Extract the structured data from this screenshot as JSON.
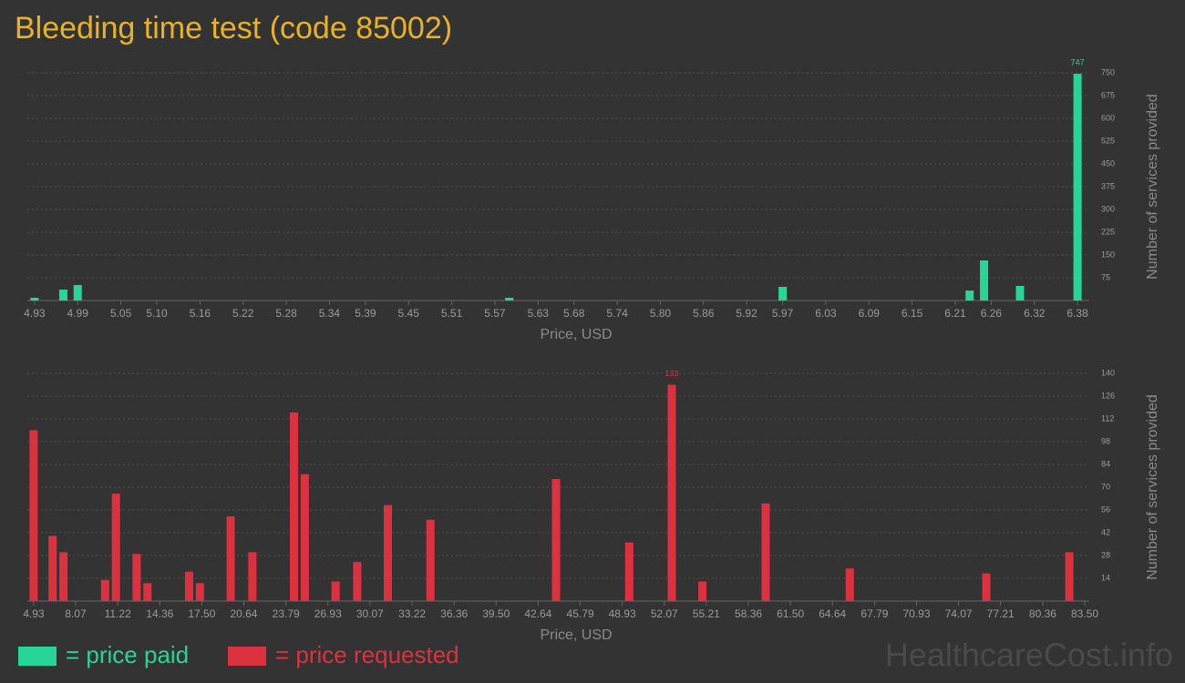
{
  "title": "Bleeding time test (code 85002)",
  "watermark": "HealthcareCost.info",
  "chart_data": [
    {
      "type": "bar",
      "x_label": "Price, USD",
      "y_label": "Number of services provided",
      "x": [
        4.93,
        4.97,
        4.99,
        5.59,
        5.97,
        6.23,
        6.25,
        6.3,
        6.38
      ],
      "series": [
        {
          "name": "= price paid",
          "color": "#27d597",
          "values": [
            9,
            36,
            51,
            9,
            45,
            33,
            132,
            48,
            747
          ]
        }
      ],
      "xlim": [
        4.92,
        6.39
      ],
      "xticks": [
        4.93,
        4.99,
        5.05,
        {
          "value": 5.1,
          "label": "5.10"
        },
        5.16,
        5.22,
        5.28,
        5.34,
        5.39,
        5.45,
        5.51,
        5.57,
        5.63,
        5.68,
        5.74,
        {
          "value": 5.8,
          "label": "5.80"
        },
        5.86,
        5.92,
        5.97,
        6.03,
        6.09,
        6.15,
        6.21,
        6.26,
        6.32,
        6.38
      ],
      "ylim": [
        0,
        750
      ],
      "yticks": [
        75,
        150,
        225,
        300,
        375,
        450,
        525,
        600,
        675,
        750
      ],
      "grid": true
    },
    {
      "type": "bar",
      "x_label": "Price, USD",
      "y_label": "Number of services provided",
      "x": [
        4.93,
        6.35,
        7.16,
        10.27,
        11.08,
        12.63,
        13.44,
        16.55,
        17.36,
        19.66,
        21.28,
        24.39,
        25.2,
        27.5,
        29.12,
        31.41,
        34.59,
        43.98,
        49.45,
        52.63,
        54.92,
        59.65,
        65.94,
        76.14,
        82.35
      ],
      "series": [
        {
          "name": "= price requested",
          "color": "#dc3240",
          "values": [
            105,
            40,
            30,
            13,
            66,
            29,
            11,
            18,
            11,
            52,
            30,
            116,
            78,
            12,
            24,
            59,
            50,
            75,
            36,
            133,
            12,
            60,
            20,
            17,
            30
          ]
        }
      ],
      "xlim": [
        4.46,
        83.5
      ],
      "xticks": [
        4.93,
        8.07,
        11.22,
        14.36,
        {
          "value": 17.5,
          "label": "17.50"
        },
        20.64,
        23.79,
        26.93,
        30.07,
        33.22,
        36.36,
        {
          "value": 39.5,
          "label": "39.50"
        },
        42.64,
        45.79,
        48.93,
        52.07,
        55.21,
        58.36,
        {
          "value": 61.5,
          "label": "61.50"
        },
        64.64,
        67.79,
        70.93,
        74.07,
        77.21,
        80.36,
        {
          "value": 83.5,
          "label": "83.50"
        }
      ],
      "ylim": [
        0,
        140
      ],
      "yticks": [
        14,
        28,
        42,
        56,
        70,
        84,
        98,
        112,
        126,
        140
      ],
      "grid": true
    }
  ]
}
